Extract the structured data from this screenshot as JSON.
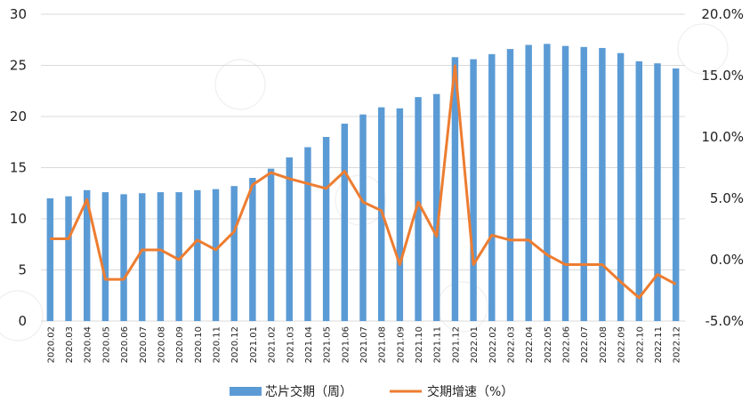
{
  "chart_data": {
    "type": "bar+line",
    "categories": [
      "2020.02",
      "2020.03",
      "2020.04",
      "2020.05",
      "2020.06",
      "2020.07",
      "2020.08",
      "2020.09",
      "2020.10",
      "2020.11",
      "2020.12",
      "2021.01",
      "2021.02",
      "2021.03",
      "2021.04",
      "2021.05",
      "2021.06",
      "2021.07",
      "2021.08",
      "2021.09",
      "2021.10",
      "2021.11",
      "2021.12",
      "2022.01",
      "2022.02",
      "2022.03",
      "2022.04",
      "2022.05",
      "2022.06",
      "2022.07",
      "2022.08",
      "2022.09",
      "2022.10",
      "2022.11",
      "2022.12"
    ],
    "series": [
      {
        "name": "芯片交期（周）",
        "type": "bar",
        "axis": "left",
        "color": "#5b9bd5",
        "values": [
          12.0,
          12.2,
          12.8,
          12.6,
          12.4,
          12.5,
          12.6,
          12.6,
          12.8,
          12.9,
          13.2,
          14.0,
          14.9,
          16.0,
          17.0,
          18.0,
          19.3,
          20.2,
          20.9,
          20.8,
          21.9,
          22.2,
          25.8,
          25.6,
          26.1,
          26.6,
          27.0,
          27.1,
          26.9,
          26.8,
          26.7,
          26.2,
          25.4,
          25.2,
          24.7
        ]
      },
      {
        "name": "交期增速（%）",
        "type": "line",
        "axis": "right",
        "color": "#ed7d31",
        "values": [
          1.7,
          1.7,
          4.9,
          -1.6,
          -1.6,
          0.8,
          0.8,
          0.0,
          1.6,
          0.8,
          2.3,
          6.1,
          7.1,
          6.6,
          6.2,
          5.8,
          7.2,
          4.7,
          4.0,
          -0.4,
          4.7,
          1.9,
          15.8,
          -0.4,
          2.0,
          1.6,
          1.6,
          0.4,
          -0.4,
          -0.4,
          -0.4,
          -1.8,
          -3.1,
          -1.2,
          -2.0
        ]
      }
    ],
    "y_left": {
      "min": 0,
      "max": 30,
      "ticks": [
        "0",
        "5",
        "10",
        "15",
        "20",
        "25",
        "30"
      ]
    },
    "y_right": {
      "min": -5,
      "max": 20,
      "ticks": [
        "-5.0%",
        "0.0%",
        "5.0%",
        "10.0%",
        "15.0%",
        "20.0%"
      ]
    },
    "grid": "horizontal",
    "legend": "bottom"
  }
}
